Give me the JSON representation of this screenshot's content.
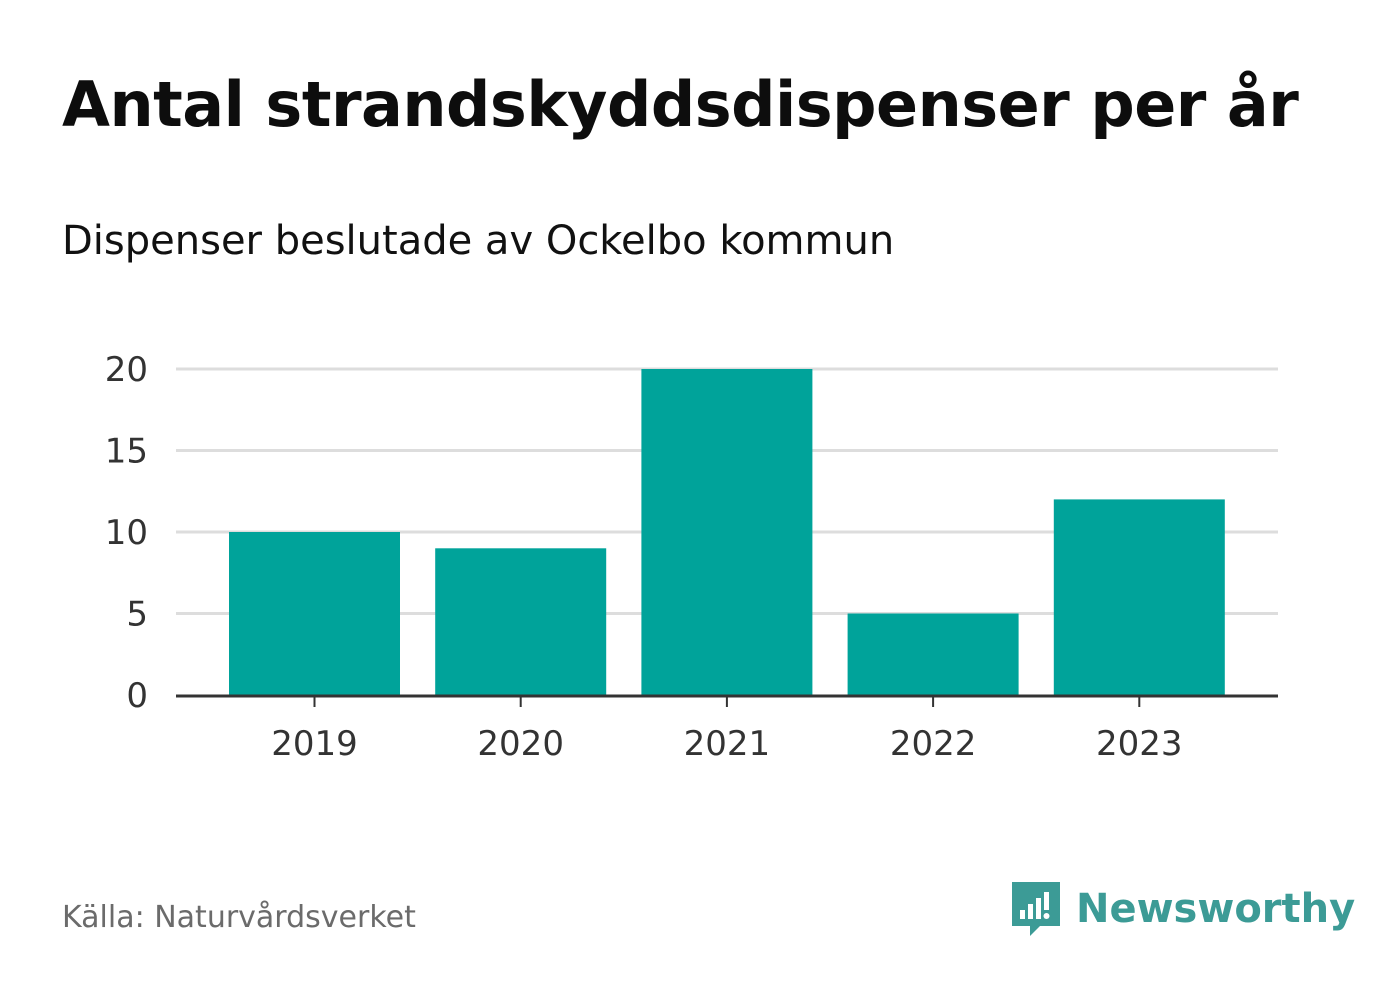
{
  "title": "Antal strandskyddsdispenser per år",
  "subtitle": "Dispenser beslutade av Ockelbo kommun",
  "source": "Källa: Naturvårdsverket",
  "brand": {
    "name": "Newsworthy",
    "icon": "newsworthy-logo-icon",
    "color": "#3c9b96"
  },
  "colors": {
    "bar": "#00a39a",
    "grid": "#dddddd",
    "axis": "#333333",
    "tick_text": "#333333"
  },
  "chart_data": {
    "type": "bar",
    "title": "Antal strandskyddsdispenser per år",
    "subtitle": "Dispenser beslutade av Ockelbo kommun",
    "xlabel": "",
    "ylabel": "",
    "categories": [
      "2019",
      "2020",
      "2021",
      "2022",
      "2023"
    ],
    "values": [
      10,
      9,
      20,
      5,
      12
    ],
    "ylim": [
      0,
      20
    ],
    "yticks": [
      "0",
      "5",
      "10",
      "15",
      "20"
    ],
    "grid": true
  }
}
